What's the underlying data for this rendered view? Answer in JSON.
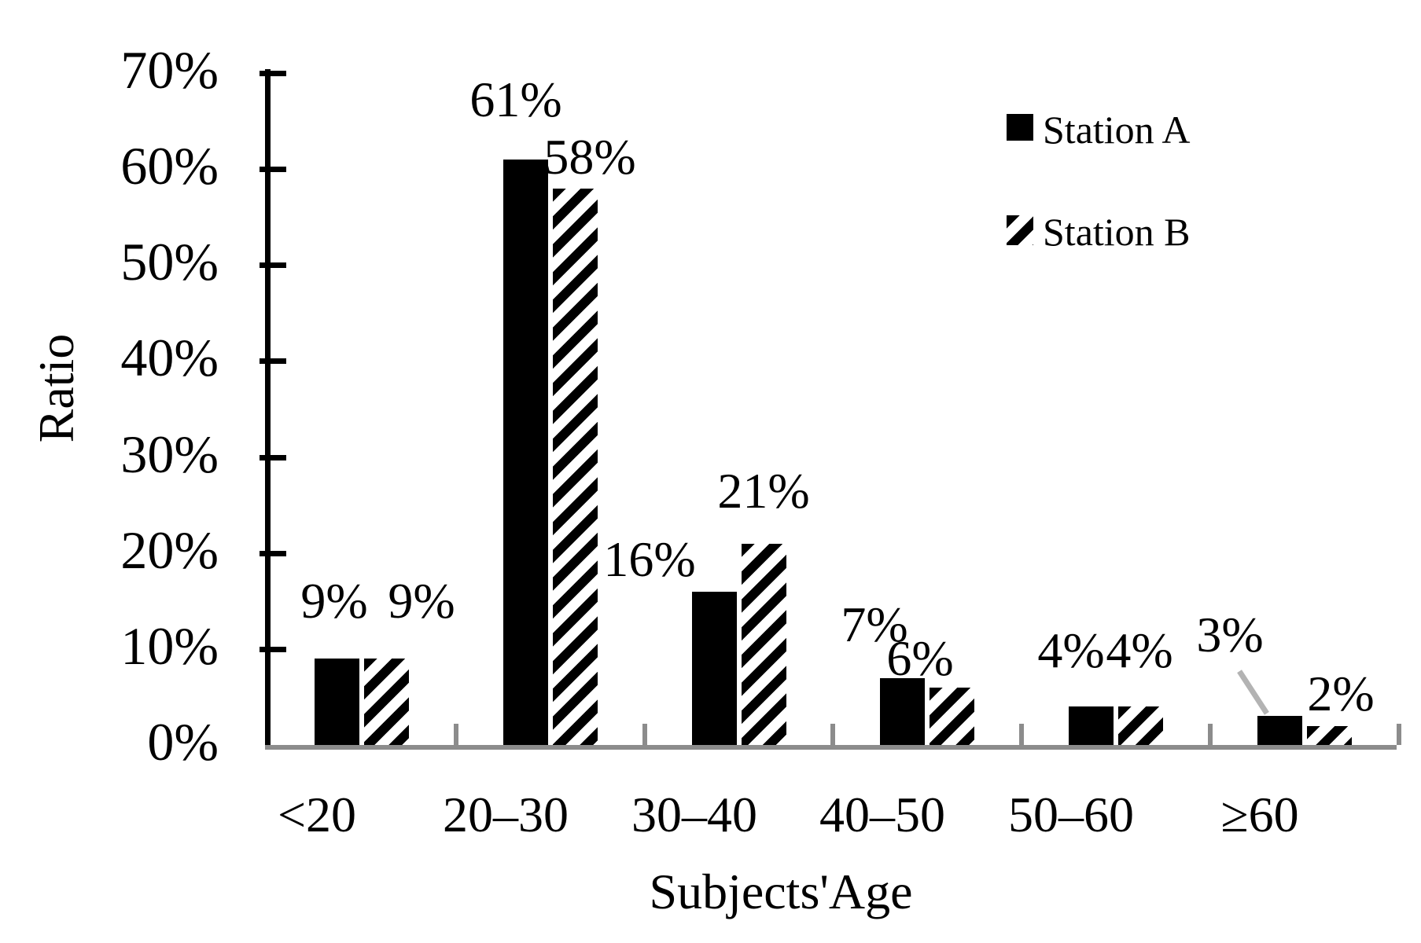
{
  "chart_data": {
    "type": "bar",
    "title": "",
    "categories": [
      "<20",
      "20–30",
      "30–40",
      "40–50",
      "50–60",
      "≥60"
    ],
    "series": [
      {
        "name": "Station A",
        "values": [
          9,
          61,
          16,
          7,
          4,
          3
        ],
        "style": "solid-black"
      },
      {
        "name": "Station B",
        "values": [
          9,
          58,
          21,
          6,
          4,
          2
        ],
        "style": "diagonal-hatch"
      }
    ],
    "data_label_suffix": "%",
    "xlabel": "Subjects'Age",
    "ylabel": "Ratio",
    "ylim": [
      0,
      70
    ],
    "y_tick_labels": [
      "0%",
      "10%",
      "20%",
      "30%",
      "40%",
      "50%",
      "60%",
      "70%"
    ],
    "grid": "off",
    "legend_position": "top-right",
    "annotation": {
      "leader_line_from_label": "3%",
      "target_series": "Station A",
      "target_category": "≥60"
    }
  },
  "colors": {
    "bar_black": "#000000",
    "axis_black": "#000000",
    "x_axis_gray": "#8c8c8c",
    "leader_line_gray": "#b3b3b3",
    "background": "#ffffff"
  }
}
